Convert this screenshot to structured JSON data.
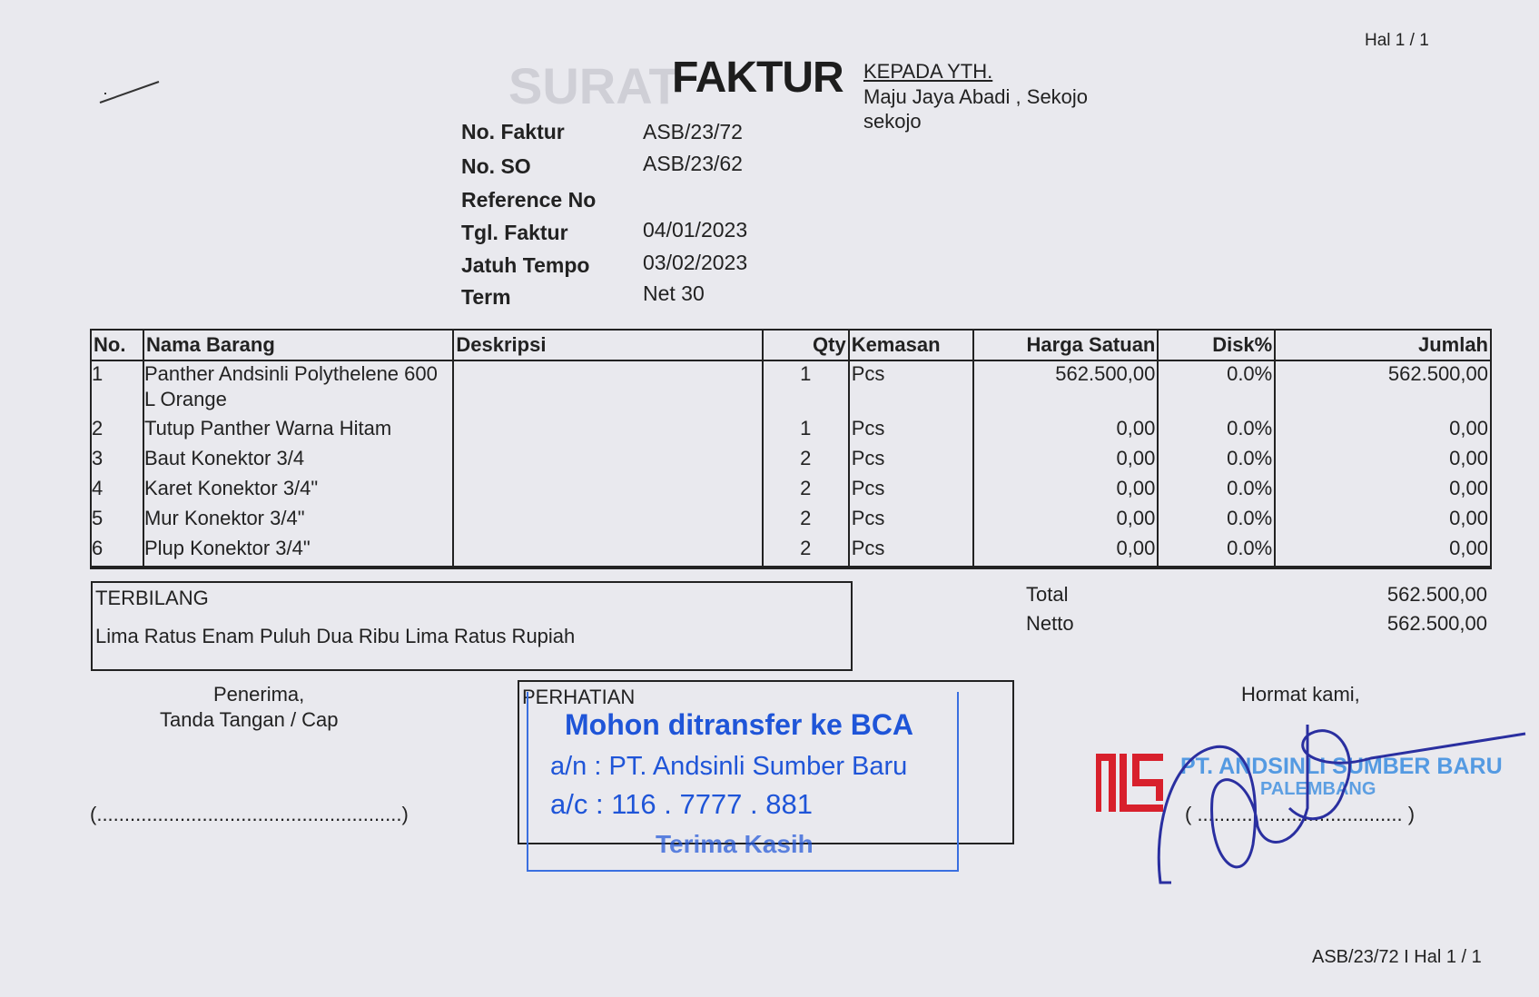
{
  "page_label": "Hal 1 / 1",
  "title": "FAKTUR",
  "watermark": "SURAT",
  "recipient": {
    "heading": "KEPADA YTH.",
    "line1": "Maju Jaya Abadi , Sekojo",
    "line2": "sekojo"
  },
  "fields": [
    {
      "label": "No. Faktur",
      "value": "ASB/23/72"
    },
    {
      "label": "No. SO",
      "value": "ASB/23/62"
    },
    {
      "label": "Reference No",
      "value": ""
    },
    {
      "label": "Tgl. Faktur",
      "value": "04/01/2023"
    },
    {
      "label": "Jatuh Tempo",
      "value": "03/02/2023"
    },
    {
      "label": "Term",
      "value": "Net 30"
    }
  ],
  "table": {
    "headers": [
      "No.",
      "Nama Barang",
      "Deskripsi",
      "Qty",
      "Kemasan",
      "Harga Satuan",
      "Disk%",
      "Jumlah"
    ],
    "rows": [
      {
        "no": "1",
        "nama": "Panther Andsinli Polythelene 600 L Orange",
        "deskripsi": "",
        "qty": "1",
        "kemasan": "Pcs",
        "harga": "562.500,00",
        "disk": "0.0%",
        "jumlah": "562.500,00"
      },
      {
        "no": "2",
        "nama": "Tutup Panther Warna Hitam",
        "deskripsi": "",
        "qty": "1",
        "kemasan": "Pcs",
        "harga": "0,00",
        "disk": "0.0%",
        "jumlah": "0,00"
      },
      {
        "no": "3",
        "nama": "Baut Konektor 3/4",
        "deskripsi": "",
        "qty": "2",
        "kemasan": "Pcs",
        "harga": "0,00",
        "disk": "0.0%",
        "jumlah": "0,00"
      },
      {
        "no": "4",
        "nama": "Karet Konektor 3/4\"",
        "deskripsi": "",
        "qty": "2",
        "kemasan": "Pcs",
        "harga": "0,00",
        "disk": "0.0%",
        "jumlah": "0,00"
      },
      {
        "no": "5",
        "nama": "Mur Konektor 3/4\"",
        "deskripsi": "",
        "qty": "2",
        "kemasan": "Pcs",
        "harga": "0,00",
        "disk": "0.0%",
        "jumlah": "0,00"
      },
      {
        "no": "6",
        "nama": "Plup Konektor 3/4\"",
        "deskripsi": "",
        "qty": "2",
        "kemasan": "Pcs",
        "harga": "0,00",
        "disk": "0.0%",
        "jumlah": "0,00"
      }
    ]
  },
  "terbilang": {
    "label": "TERBILANG",
    "text": "Lima Ratus Enam Puluh Dua Ribu Lima Ratus Rupiah"
  },
  "totals": {
    "total_label": "Total",
    "total": "562.500,00",
    "netto_label": "Netto",
    "netto": "562.500,00"
  },
  "receiver": {
    "line1": "Penerima,",
    "line2": "Tanda Tangan / Cap",
    "sign_line": "(.......................................................)"
  },
  "notice": {
    "label": "PERHATIAN",
    "stamp_line1": "Mohon ditransfer ke BCA",
    "stamp_line2": "a/n : PT. Andsinli Sumber Baru",
    "stamp_line3": "a/c : 116 . 7777 . 881",
    "stamp_line4": "Terima Kasih"
  },
  "sender": {
    "greeting": "Hormat kami,",
    "logo": "ALS",
    "stamp_company": "PT. ANDSINLI SUMBER BARU",
    "stamp_city": "PALEMBANG",
    "sign_line": "( ..................................... )"
  },
  "footer": "ASB/23/72 I Hal 1 / 1",
  "colors": {
    "paper": "#e9e9ee",
    "ink": "#222222",
    "stamp_blue": "#1f55d8",
    "logo_red": "#d8202c",
    "signature": "#2a2fa0"
  }
}
